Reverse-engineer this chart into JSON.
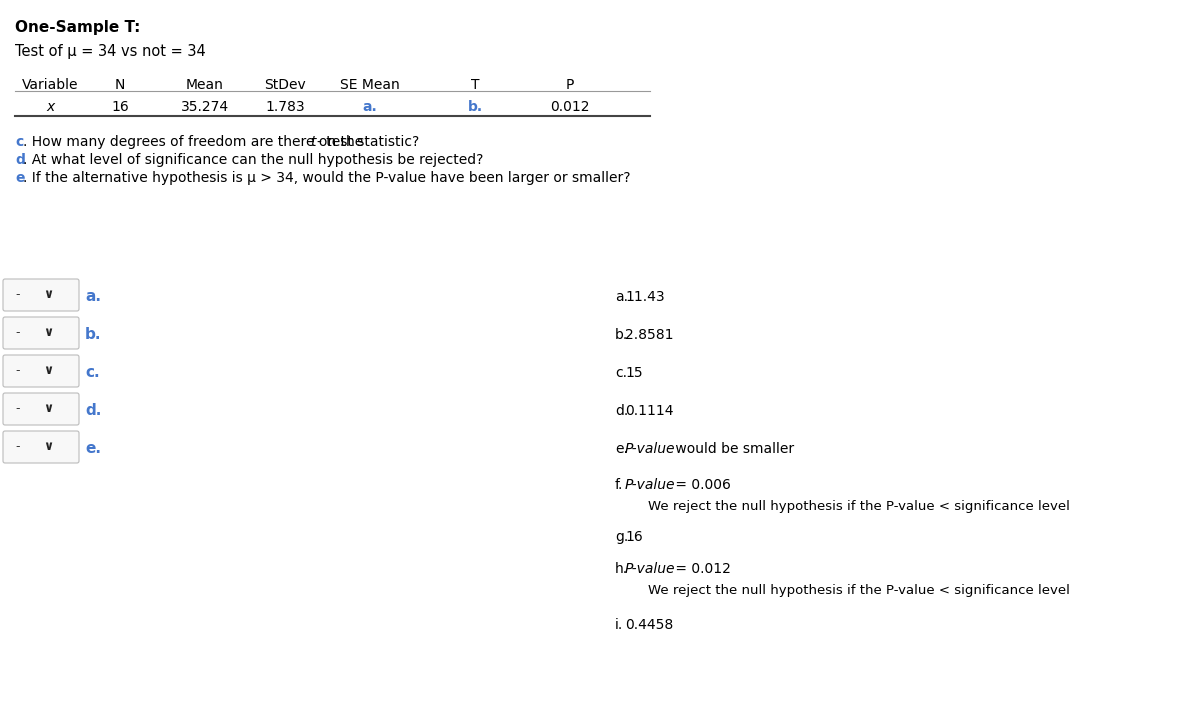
{
  "title": "One-Sample T:",
  "subtitle": "Test of μ = 34 vs not = 34",
  "table_headers": [
    "Variable",
    "N",
    "Mean",
    "StDev",
    "SE Mean",
    "T",
    "P"
  ],
  "table_row": [
    "x",
    "16",
    "35.274",
    "1.783",
    "a.",
    "b.",
    "0.012"
  ],
  "table_blue_cols": [
    4,
    5
  ],
  "bg_color": "#ffffff",
  "text_color": "#000000",
  "blue_color": "#4477cc",
  "left_labels": [
    "a.",
    "b.",
    "c.",
    "d.",
    "e."
  ],
  "right_items": [
    {
      "label": "a.",
      "italic_part": "",
      "text": "11.43",
      "rest": "",
      "indent": false
    },
    {
      "label": "b.",
      "italic_part": "",
      "text": "2.8581",
      "rest": "",
      "indent": false
    },
    {
      "label": "c.",
      "italic_part": "",
      "text": "15",
      "rest": "",
      "indent": false
    },
    {
      "label": "d.",
      "italic_part": "",
      "text": "0.1114",
      "rest": "",
      "indent": false
    },
    {
      "label": "e.",
      "italic_part": "P-value",
      "text": "",
      "rest": " would be smaller",
      "indent": false
    },
    {
      "label": "f.",
      "italic_part": "P-value",
      "text": "",
      "rest": " = 0.006",
      "indent": false
    },
    {
      "label": "",
      "italic_part": "",
      "text": "We reject the null hypothesis if the P-value < significance level",
      "rest": "",
      "indent": true
    },
    {
      "label": "g.",
      "italic_part": "",
      "text": "16",
      "rest": "",
      "indent": false
    },
    {
      "label": "h.",
      "italic_part": "P-value",
      "text": "",
      "rest": " = 0.012",
      "indent": false
    },
    {
      "label": "",
      "italic_part": "",
      "text": "We reject the null hypothesis if the P-value < significance level",
      "rest": "",
      "indent": true
    },
    {
      "label": "i.",
      "italic_part": "",
      "text": "0.4458",
      "rest": "",
      "indent": false
    }
  ]
}
